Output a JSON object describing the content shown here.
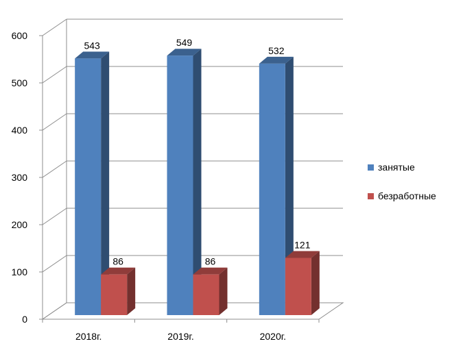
{
  "chart_data": {
    "type": "bar",
    "categories": [
      "2018г.",
      "2019г.",
      "2020г."
    ],
    "series": [
      {
        "name": "занятые",
        "values": [
          543,
          549,
          532
        ],
        "color": "#4F81BD"
      },
      {
        "name": "безработные",
        "values": [
          86,
          86,
          121
        ],
        "color": "#C0504D"
      }
    ],
    "yticks": [
      "0",
      "100",
      "200",
      "300",
      "400",
      "500",
      "600"
    ],
    "ylim": [
      0,
      600
    ],
    "grid": true,
    "legend_position": "right",
    "style": "3d-column"
  }
}
